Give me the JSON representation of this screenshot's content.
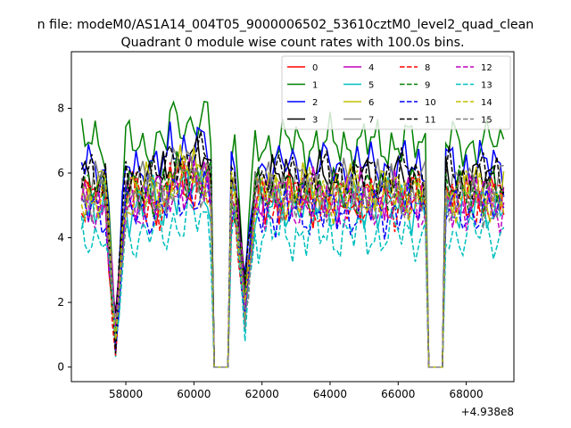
{
  "suptitle": "n file: modeM0/AS1A14_004T05_9000006502_53610cztM0_level2_quad_clean",
  "chart_data": {
    "type": "line",
    "title": "Quadrant 0 module wise count rates with 100.0s bins.",
    "xlabel": "",
    "ylabel": "",
    "x_offset_label": "+4.938e8",
    "xlim": [
      56400,
      69400
    ],
    "ylim": [
      -0.45,
      9.75
    ],
    "x_ticks": [
      58000,
      60000,
      62000,
      64000,
      66000,
      68000
    ],
    "x_tick_labels": [
      "58000",
      "60000",
      "62000",
      "64000",
      "66000",
      "68000"
    ],
    "y_ticks": [
      0,
      2,
      4,
      6,
      8
    ],
    "y_tick_labels": [
      "0",
      "2",
      "4",
      "6",
      "8"
    ],
    "grid": false,
    "legend_placement": "top-right",
    "legend_columns": 4,
    "x_start": 56700,
    "x_step": 100,
    "n_points": 125,
    "gaps": [
      [
        60600,
        61000
      ],
      [
        66900,
        67300
      ]
    ],
    "series": [
      {
        "name": "0",
        "color": "#ff0000",
        "dash": "solid",
        "level": 5.2
      },
      {
        "name": "1",
        "color": "#008000",
        "dash": "solid",
        "level": 6.9
      },
      {
        "name": "2",
        "color": "#0000ff",
        "dash": "solid",
        "level": 6.2
      },
      {
        "name": "3",
        "color": "#000000",
        "dash": "solid",
        "level": 5.8
      },
      {
        "name": "4",
        "color": "#bf00bf",
        "dash": "solid",
        "level": 5.3
      },
      {
        "name": "5",
        "color": "#00bfbf",
        "dash": "solid",
        "level": 5.0
      },
      {
        "name": "6",
        "color": "#bfbf00",
        "dash": "solid",
        "level": 5.5
      },
      {
        "name": "7",
        "color": "#808080",
        "dash": "solid",
        "level": 5.6
      },
      {
        "name": "8",
        "color": "#ff0000",
        "dash": "dashed",
        "level": 5.1
      },
      {
        "name": "9",
        "color": "#008000",
        "dash": "dashed",
        "level": 5.4
      },
      {
        "name": "10",
        "color": "#0000ff",
        "dash": "dashed",
        "level": 4.8
      },
      {
        "name": "11",
        "color": "#000000",
        "dash": "dashed",
        "level": 5.9
      },
      {
        "name": "12",
        "color": "#bf00bf",
        "dash": "dashed",
        "level": 5.0
      },
      {
        "name": "13",
        "color": "#00bfbf",
        "dash": "dashed",
        "level": 4.1
      },
      {
        "name": "14",
        "color": "#bfbf00",
        "dash": "dashed",
        "level": 5.3
      },
      {
        "name": "15",
        "color": "#808080",
        "dash": "dashed",
        "level": 5.2
      }
    ]
  }
}
